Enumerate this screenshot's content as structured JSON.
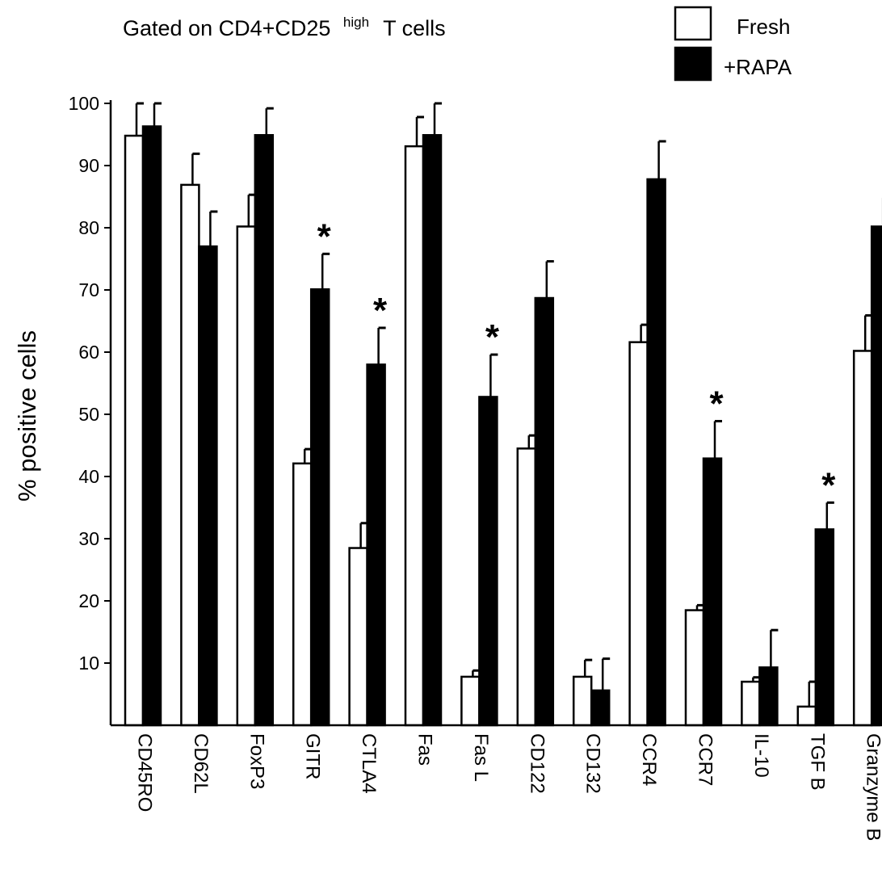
{
  "chart_data": {
    "type": "bar",
    "title": {
      "prefix": "Gated on CD4+CD25",
      "superscript": "high",
      "suffix": "T cells"
    },
    "ylabel": "% positive cells",
    "ylim": [
      0,
      100
    ],
    "yticks": [
      "10",
      "20",
      "30",
      "40",
      "50",
      "60",
      "70",
      "80",
      "90",
      "100"
    ],
    "legend_position": "top-right",
    "categories": [
      "CD45RO",
      "CD62L",
      "FoxP3",
      "GITR",
      "CTLA4",
      "Fas",
      "Fas L",
      "CD122",
      "CD132",
      "CCR4",
      "CCR7",
      "IL-10",
      "TGF B",
      "Granzyme B"
    ],
    "series": [
      {
        "name": "Fresh",
        "fill": "#ffffff",
        "values": [
          94.8,
          86.9,
          80.2,
          42.1,
          28.5,
          93.1,
          7.8,
          44.5,
          7.8,
          61.6,
          18.5,
          7.0,
          3.0,
          60.2
        ],
        "errors": [
          5.2,
          5.0,
          5.1,
          2.3,
          4.0,
          4.7,
          1.0,
          2.1,
          2.7,
          2.8,
          0.8,
          0.7,
          4.0,
          5.7
        ]
      },
      {
        "name": "+RAPA",
        "fill": "#000000",
        "values": [
          96.3,
          77.0,
          94.9,
          70.1,
          58.0,
          94.9,
          52.8,
          68.7,
          5.6,
          87.8,
          42.9,
          9.3,
          31.5,
          80.2
        ],
        "errors": [
          3.7,
          5.6,
          4.3,
          5.7,
          5.9,
          5.9,
          6.8,
          5.9,
          5.1,
          6.1,
          6.0,
          6.0,
          4.3,
          4.6
        ]
      }
    ],
    "significance": {
      "symbol": "*",
      "categories": [
        "GITR",
        "CTLA4",
        "Fas L",
        "CCR7",
        "TGF B"
      ]
    }
  }
}
